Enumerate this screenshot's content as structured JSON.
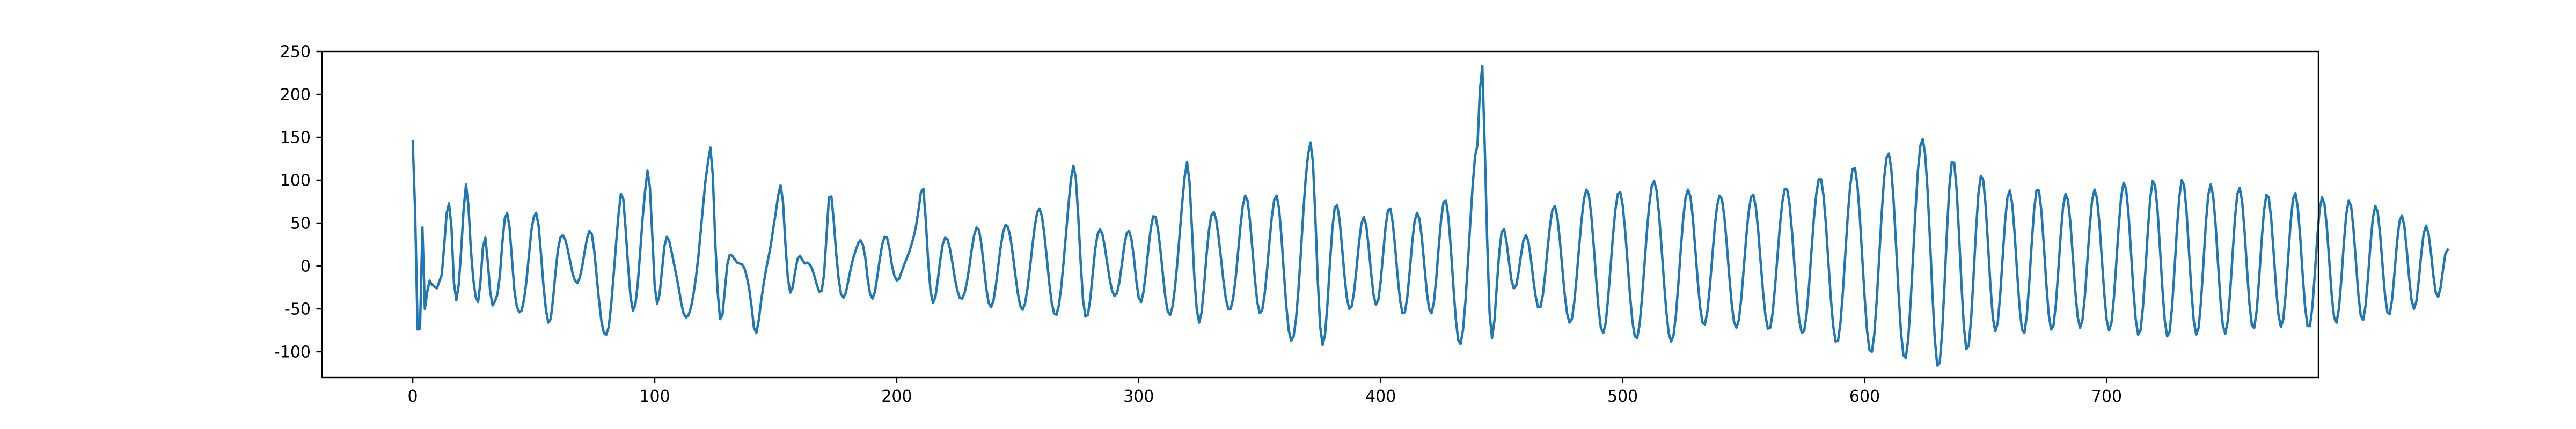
{
  "chart_data": {
    "type": "line",
    "title": "",
    "xlabel": "",
    "ylabel": "",
    "xlim": [
      -37.5,
      787.5
    ],
    "ylim": [
      -130,
      250
    ],
    "x_ticks": [
      0,
      100,
      200,
      300,
      400,
      500,
      600,
      700
    ],
    "y_ticks": [
      -100,
      -50,
      0,
      50,
      100,
      150,
      200,
      250
    ],
    "grid": false,
    "legend": "none",
    "line_color": "#1f77b4",
    "series": [
      {
        "x_start": 0,
        "x_step": 1,
        "values": [
          145,
          62,
          -74,
          -73,
          45,
          -50,
          -30,
          -17,
          -22,
          -24,
          -26,
          -18,
          -10,
          24,
          61,
          73,
          45,
          -19,
          -40,
          -22,
          18,
          65,
          95,
          71,
          20,
          -15,
          -36,
          -42,
          -18,
          22,
          33,
          5,
          -30,
          -46,
          -41,
          -33,
          -11,
          26,
          55,
          62,
          45,
          8,
          -28,
          -47,
          -54,
          -52,
          -39,
          -17,
          12,
          41,
          57,
          62,
          47,
          14,
          -22,
          -50,
          -66,
          -62,
          -38,
          -7,
          19,
          33,
          36,
          31,
          20,
          6,
          -8,
          -17,
          -20,
          -14,
          -1,
          16,
          32,
          41,
          37,
          18,
          -12,
          -41,
          -65,
          -78,
          -80,
          -71,
          -45,
          -11,
          25,
          59,
          84,
          78,
          42,
          0,
          -36,
          -52,
          -45,
          -20,
          17,
          56,
          87,
          111,
          92,
          35,
          -24,
          -44,
          -33,
          -5,
          23,
          34,
          29,
          16,
          2,
          -12,
          -27,
          -44,
          -56,
          -60,
          -57,
          -48,
          -33,
          -14,
          10,
          40,
          71,
          100,
          121,
          138,
          106,
          29,
          -30,
          -62,
          -57,
          -27,
          2,
          13,
          12,
          8,
          4,
          3,
          2,
          -2,
          -12,
          -26,
          -47,
          -72,
          -78,
          -63,
          -40,
          -21,
          -4,
          10,
          25,
          44,
          62,
          82,
          94,
          75,
          26,
          -14,
          -31,
          -25,
          -7,
          8,
          12,
          7,
          3,
          4,
          2,
          -3,
          -12,
          -22,
          -30,
          -29,
          -9,
          36,
          80,
          81,
          52,
          14,
          -15,
          -33,
          -37,
          -31,
          -17,
          -3,
          9,
          18,
          26,
          30,
          25,
          10,
          -15,
          -33,
          -38,
          -30,
          -12,
          8,
          25,
          34,
          33,
          20,
          1,
          -11,
          -17,
          -15,
          -7,
          1,
          8,
          15,
          24,
          34,
          47,
          65,
          86,
          90,
          54,
          5,
          -30,
          -43,
          -36,
          -16,
          7,
          25,
          33,
          31,
          20,
          4,
          -14,
          -28,
          -37,
          -38,
          -32,
          -19,
          -1,
          19,
          36,
          45,
          42,
          25,
          0,
          -26,
          -43,
          -48,
          -40,
          -22,
          1,
          23,
          40,
          48,
          45,
          33,
          13,
          -10,
          -31,
          -46,
          -51,
          -44,
          -27,
          -4,
          22,
          45,
          62,
          67,
          58,
          37,
          10,
          -19,
          -42,
          -55,
          -57,
          -46,
          -24,
          6,
          39,
          72,
          101,
          117,
          103,
          59,
          5,
          -40,
          -59,
          -57,
          -38,
          -9,
          19,
          37,
          43,
          37,
          22,
          3,
          -15,
          -29,
          -35,
          -32,
          -19,
          1,
          23,
          38,
          41,
          31,
          10,
          -17,
          -37,
          -42,
          -30,
          -7,
          20,
          44,
          58,
          57,
          42,
          18,
          -10,
          -36,
          -53,
          -57,
          -47,
          -25,
          5,
          40,
          74,
          104,
          121,
          98,
          44,
          -14,
          -51,
          -66,
          -54,
          -24,
          12,
          41,
          59,
          63,
          54,
          34,
          9,
          -17,
          -38,
          -50,
          -50,
          -38,
          -16,
          14,
          45,
          70,
          82,
          76,
          52,
          19,
          -15,
          -42,
          -55,
          -52,
          -34,
          -6,
          27,
          57,
          77,
          82,
          67,
          34,
          -8,
          -47,
          -75,
          -87,
          -82,
          -62,
          -28,
          15,
          62,
          102,
          130,
          144,
          121,
          57,
          -17,
          -71,
          -92,
          -80,
          -44,
          2,
          43,
          68,
          71,
          54,
          23,
          -10,
          -37,
          -50,
          -47,
          -30,
          -3,
          26,
          49,
          57,
          48,
          23,
          -7,
          -33,
          -45,
          -40,
          -18,
          14,
          45,
          65,
          67,
          50,
          21,
          -12,
          -40,
          -55,
          -54,
          -36,
          -6,
          27,
          52,
          62,
          55,
          33,
          2,
          -29,
          -50,
          -55,
          -42,
          -13,
          23,
          55,
          75,
          76,
          56,
          20,
          -22,
          -61,
          -86,
          -91,
          -75,
          -42,
          2,
          49,
          94,
          128,
          141,
          205,
          233,
          140,
          30,
          -55,
          -84,
          -64,
          -23,
          16,
          40,
          43,
          28,
          5,
          -16,
          -26,
          -23,
          -7,
          13,
          30,
          36,
          29,
          10,
          -14,
          -35,
          -48,
          -48,
          -34,
          -9,
          21,
          48,
          66,
          70,
          57,
          31,
          -1,
          -32,
          -55,
          -66,
          -62,
          -42,
          -12,
          22,
          54,
          78,
          89,
          83,
          60,
          25,
          -14,
          -49,
          -72,
          -78,
          -66,
          -37,
          -1,
          36,
          66,
          84,
          86,
          71,
          42,
          5,
          -33,
          -64,
          -82,
          -84,
          -68,
          -37,
          1,
          40,
          72,
          93,
          99,
          88,
          61,
          24,
          -16,
          -52,
          -78,
          -88,
          -81,
          -57,
          -21,
          19,
          55,
          80,
          89,
          81,
          56,
          20,
          -17,
          -48,
          -66,
          -68,
          -53,
          -25,
          10,
          44,
          70,
          82,
          78,
          58,
          26,
          -10,
          -43,
          -65,
          -72,
          -63,
          -38,
          -4,
          32,
          62,
          80,
          83,
          69,
          41,
          5,
          -30,
          -58,
          -73,
          -72,
          -54,
          -23,
          13,
          48,
          75,
          90,
          89,
          71,
          39,
          0,
          -37,
          -64,
          -78,
          -76,
          -56,
          -23,
          17,
          55,
          84,
          101,
          101,
          82,
          48,
          5,
          -37,
          -70,
          -88,
          -87,
          -66,
          -30,
          14,
          58,
          93,
          113,
          114,
          94,
          57,
          10,
          -37,
          -76,
          -98,
          -100,
          -79,
          -39,
          10,
          60,
          101,
          126,
          131,
          113,
          74,
          22,
          -31,
          -77,
          -104,
          -107,
          -85,
          -42,
          11,
          65,
          111,
          140,
          148,
          130,
          88,
          30,
          -32,
          -86,
          -116,
          -113,
          -78,
          -22,
          40,
          92,
          121,
          120,
          89,
          37,
          -22,
          -71,
          -97,
          -93,
          -61,
          -12,
          41,
          84,
          105,
          100,
          70,
          24,
          -24,
          -61,
          -76,
          -66,
          -34,
          9,
          51,
          80,
          88,
          72,
          37,
          -7,
          -48,
          -74,
          -78,
          -58,
          -20,
          25,
          65,
          88,
          88,
          65,
          26,
          -18,
          -55,
          -74,
          -70,
          -45,
          -6,
          36,
          69,
          84,
          77,
          51,
          12,
          -28,
          -59,
          -72,
          -63,
          -35,
          5,
          46,
          77,
          89,
          79,
          50,
          9,
          -32,
          -63,
          -75,
          -66,
          -37,
          4,
          47,
          81,
          97,
          90,
          62,
          19,
          -26,
          -62,
          -80,
          -75,
          -48,
          -6,
          40,
          79,
          99,
          94,
          66,
          22,
          -25,
          -63,
          -82,
          -77,
          -49,
          -6,
          41,
          80,
          100,
          94,
          64,
          18,
          -28,
          -64,
          -80,
          -72,
          -41,
          4,
          50,
          83,
          95,
          82,
          49,
          4,
          -39,
          -69,
          -79,
          -65,
          -32,
          12,
          55,
          84,
          91,
          75,
          40,
          -4,
          -44,
          -69,
          -72,
          -52,
          -15,
          28,
          64,
          83,
          80,
          55,
          16,
          -25,
          -57,
          -71,
          -62,
          -32,
          9,
          50,
          78,
          85,
          68,
          33,
          -10,
          -48,
          -70,
          -70,
          -48,
          -10,
          32,
          66,
          80,
          72,
          45,
          5,
          -34,
          -60,
          -66,
          -49,
          -15,
          26,
          60,
          76,
          70,
          43,
          5,
          -33,
          -58,
          -63,
          -46,
          -13,
          25,
          56,
          70,
          63,
          37,
          1,
          -33,
          -54,
          -56,
          -38,
          -6,
          28,
          52,
          59,
          47,
          19,
          -14,
          -40,
          -50,
          -41,
          -16,
          14,
          38,
          47,
          38,
          16,
          -11,
          -31,
          -36,
          -25,
          -4,
          15,
          19
        ]
      }
    ]
  }
}
